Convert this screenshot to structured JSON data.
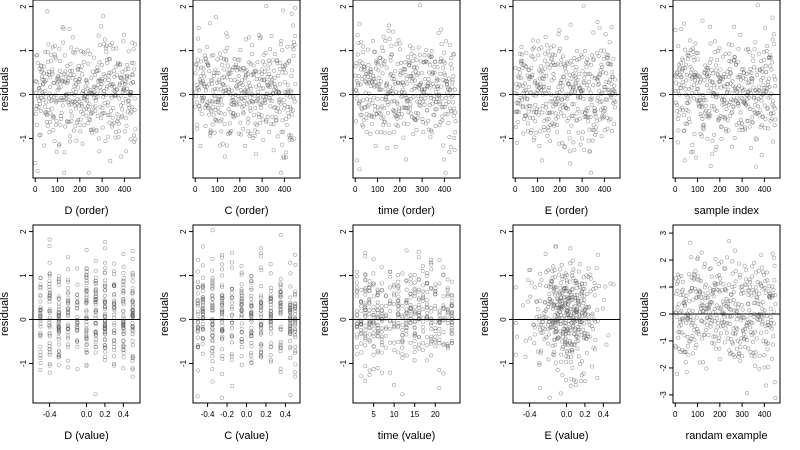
{
  "chart_data": [
    {
      "type": "scatter",
      "xlabel": "D (order)",
      "ylabel": "residuals",
      "xlim": [
        -10,
        470
      ],
      "ylim": [
        -1.9,
        2.15
      ],
      "xticks": [
        0,
        100,
        200,
        300,
        400
      ],
      "xtick_labels": [
        "0",
        "100",
        "200",
        "300",
        "400"
      ],
      "yticks": [
        -1,
        0,
        1,
        2
      ],
      "ytick_labels": [
        "-1",
        "0",
        "1",
        "2"
      ],
      "hline": 0,
      "points": [],
      "point_count": 450,
      "x_mode": "order",
      "band_center": 0.1,
      "band_sd": 0.6
    },
    {
      "type": "scatter",
      "xlabel": "C (order)",
      "ylabel": "residuals",
      "xlim": [
        -10,
        470
      ],
      "ylim": [
        -1.9,
        2.15
      ],
      "xticks": [
        0,
        100,
        200,
        300,
        400
      ],
      "xtick_labels": [
        "0",
        "100",
        "200",
        "300",
        "400"
      ],
      "yticks": [
        -1,
        0,
        1,
        2
      ],
      "ytick_labels": [
        "-1",
        "0",
        "1",
        "2"
      ],
      "hline": 0,
      "points": [],
      "point_count": 450,
      "x_mode": "order",
      "band_center": 0.1,
      "band_sd": 0.6
    },
    {
      "type": "scatter",
      "xlabel": "time (order)",
      "ylabel": "residuals",
      "xlim": [
        -10,
        470
      ],
      "ylim": [
        -1.9,
        2.15
      ],
      "xticks": [
        0,
        100,
        200,
        300,
        400
      ],
      "xtick_labels": [
        "0",
        "100",
        "200",
        "300",
        "400"
      ],
      "yticks": [
        -1,
        0,
        1,
        2
      ],
      "ytick_labels": [
        "-1",
        "0",
        "1",
        "2"
      ],
      "hline": 0,
      "points": [],
      "point_count": 450,
      "x_mode": "order",
      "band_center": 0.1,
      "band_sd": 0.6
    },
    {
      "type": "scatter",
      "xlabel": "E (order)",
      "ylabel": "residuals",
      "xlim": [
        -10,
        470
      ],
      "ylim": [
        -1.9,
        2.15
      ],
      "xticks": [
        0,
        100,
        200,
        300,
        400
      ],
      "xtick_labels": [
        "0",
        "100",
        "200",
        "300",
        "400"
      ],
      "yticks": [
        -1,
        0,
        1,
        2
      ],
      "ytick_labels": [
        "-1",
        "0",
        "1",
        "2"
      ],
      "hline": 0,
      "points": [],
      "point_count": 450,
      "x_mode": "order",
      "band_center": 0.1,
      "band_sd": 0.6
    },
    {
      "type": "scatter",
      "xlabel": "sample index",
      "ylabel": "residuals",
      "xlim": [
        -10,
        470
      ],
      "ylim": [
        -1.9,
        2.15
      ],
      "xticks": [
        0,
        100,
        200,
        300,
        400
      ],
      "xtick_labels": [
        "0",
        "100",
        "200",
        "300",
        "400"
      ],
      "yticks": [
        -1,
        0,
        1,
        2
      ],
      "ytick_labels": [
        "-1",
        "0",
        "1",
        "2"
      ],
      "hline": 0,
      "points": [],
      "point_count": 450,
      "x_mode": "order",
      "band_center": 0.1,
      "band_sd": 0.6
    },
    {
      "type": "scatter",
      "xlabel": "D (value)",
      "ylabel": "residuals",
      "xlim": [
        -0.58,
        0.58
      ],
      "ylim": [
        -1.9,
        2.15
      ],
      "xticks": [
        -0.4,
        0.0,
        0.2,
        0.4
      ],
      "xtick_labels": [
        "-0.4",
        "0.0",
        "0.2",
        "0.4"
      ],
      "yticks": [
        -1,
        0,
        1,
        2
      ],
      "ytick_labels": [
        "-1",
        "0",
        "1",
        "2"
      ],
      "hline": 0,
      "points": [],
      "point_count": 450,
      "x_mode": "columns",
      "columns": [
        -0.5,
        -0.4,
        -0.3,
        -0.2,
        -0.1,
        0.0,
        0.1,
        0.2,
        0.3,
        0.4,
        0.5
      ],
      "band_center": 0.1,
      "band_sd": 0.6
    },
    {
      "type": "scatter",
      "xlabel": "C (value)",
      "ylabel": "residuals",
      "xlim": [
        -0.55,
        0.55
      ],
      "ylim": [
        -1.9,
        2.15
      ],
      "xticks": [
        -0.4,
        -0.2,
        0.0,
        0.2,
        0.4
      ],
      "xtick_labels": [
        "-0.4",
        "-0.2",
        "0.0",
        "0.2",
        "0.4"
      ],
      "yticks": [
        -1,
        0,
        1,
        2
      ],
      "ytick_labels": [
        "-1",
        "0",
        "1",
        "2"
      ],
      "hline": 0,
      "points": [],
      "point_count": 450,
      "x_mode": "columns",
      "columns": [
        -0.5,
        -0.45,
        -0.35,
        -0.25,
        -0.15,
        -0.05,
        0.05,
        0.15,
        0.25,
        0.35,
        0.45,
        0.5
      ],
      "band_center": 0.1,
      "band_sd": 0.6
    },
    {
      "type": "scatter",
      "xlabel": "time (value)",
      "ylabel": "residuals",
      "xlim": [
        0,
        26
      ],
      "ylim": [
        -1.9,
        2.15
      ],
      "xticks": [
        5,
        10,
        15,
        20
      ],
      "xtick_labels": [
        "5",
        "10",
        "15",
        "20"
      ],
      "yticks": [
        -1,
        0,
        1,
        2
      ],
      "ytick_labels": [
        "-1",
        "0",
        "1",
        "2"
      ],
      "hline": 0,
      "points": [],
      "point_count": 450,
      "x_mode": "columns",
      "columns": [
        1,
        2,
        3,
        4,
        5,
        6,
        7,
        8,
        9,
        10,
        11,
        12,
        13,
        14,
        15,
        16,
        17,
        18,
        19,
        20,
        21,
        22,
        23,
        24
      ],
      "band_center": 0.1,
      "band_sd": 0.6
    },
    {
      "type": "scatter",
      "xlabel": "E (value)",
      "ylabel": "residuals",
      "xlim": [
        -0.58,
        0.58
      ],
      "ylim": [
        -1.9,
        2.15
      ],
      "xticks": [
        -0.4,
        0.0,
        0.2,
        0.4
      ],
      "xtick_labels": [
        "-0.4",
        "0.0",
        "0.2",
        "0.4"
      ],
      "yticks": [
        -1,
        0,
        1,
        2
      ],
      "ytick_labels": [
        "-1",
        "0",
        "1",
        "2"
      ],
      "hline": 0,
      "points": [],
      "point_count": 450,
      "x_mode": "normal",
      "x_center": 0.0,
      "x_sd": 0.17,
      "band_center": 0.1,
      "band_sd": 0.6
    },
    {
      "type": "scatter",
      "xlabel": "randam example",
      "ylabel": "residuals",
      "xlim": [
        -10,
        470
      ],
      "ylim": [
        -3.3,
        3.3
      ],
      "xticks": [
        0,
        100,
        200,
        300,
        400
      ],
      "xtick_labels": [
        "0",
        "100",
        "200",
        "300",
        "400"
      ],
      "yticks": [
        -3,
        -2,
        -1,
        0,
        1,
        2,
        3
      ],
      "ytick_labels": [
        "-3",
        "-2",
        "-1",
        "0",
        "1",
        "2",
        "3"
      ],
      "hline": 0,
      "points": [],
      "point_count": 450,
      "x_mode": "order",
      "band_center": 0.0,
      "band_sd": 1.0
    }
  ]
}
